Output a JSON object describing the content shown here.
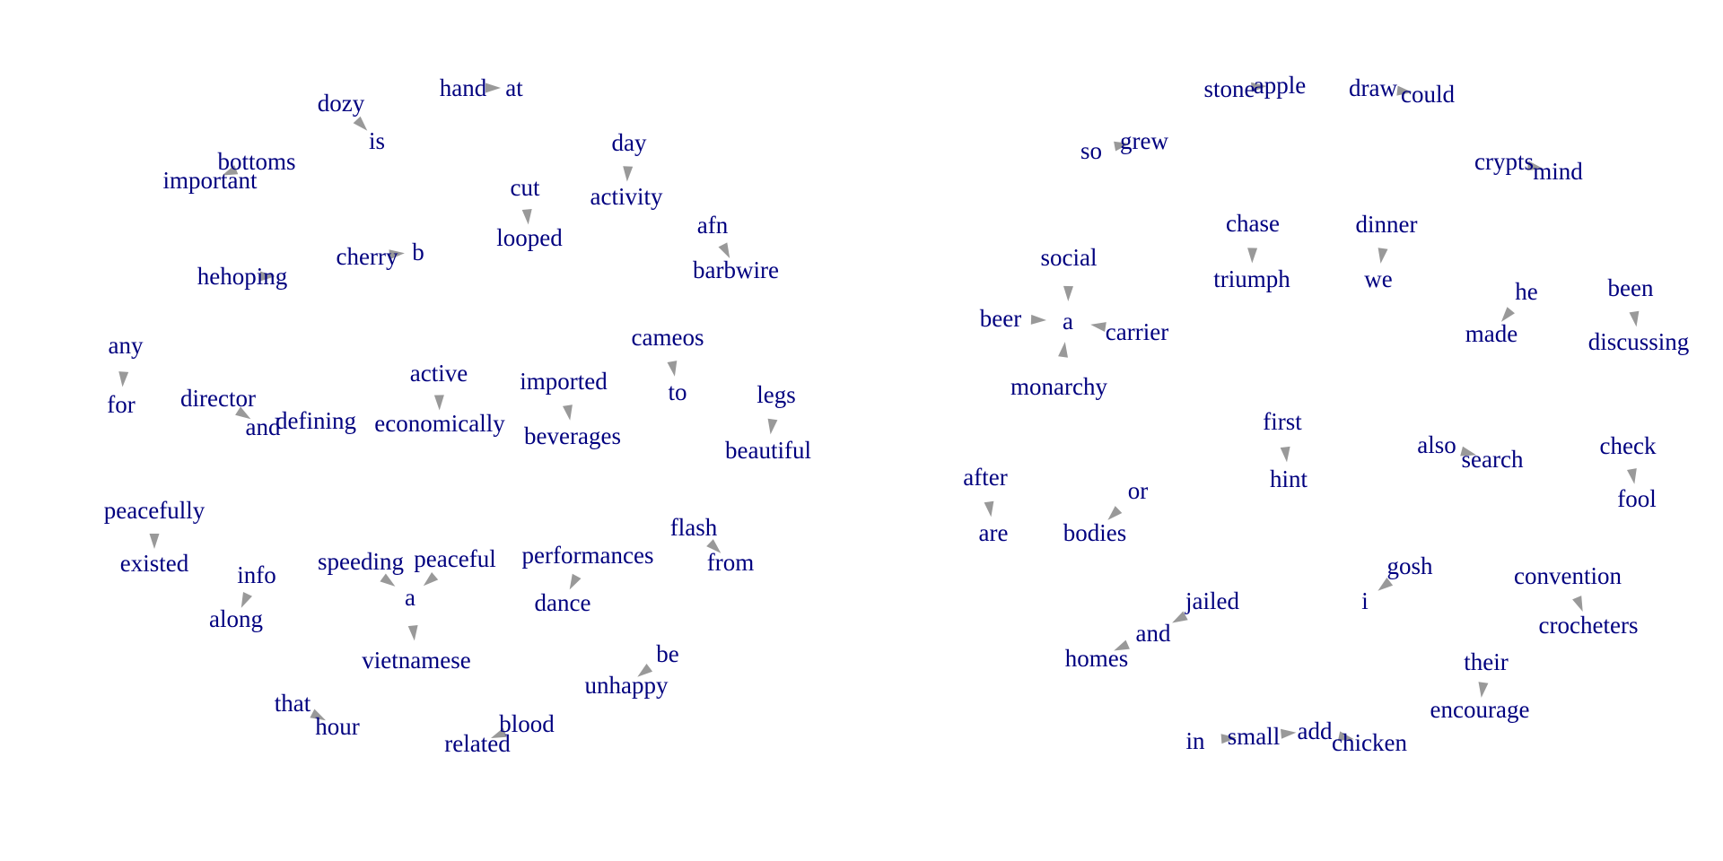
{
  "colors": {
    "label": "#00007f",
    "arrow": "#999999",
    "background": "#ffffff"
  },
  "nodes": [
    {
      "id": "hand",
      "label": "hand"
    },
    {
      "id": "at",
      "label": "at"
    },
    {
      "id": "dozy",
      "label": "dozy"
    },
    {
      "id": "is",
      "label": "is"
    },
    {
      "id": "bottoms",
      "label": "bottoms"
    },
    {
      "id": "important",
      "label": "important"
    },
    {
      "id": "day",
      "label": "day"
    },
    {
      "id": "activity",
      "label": "activity"
    },
    {
      "id": "cut",
      "label": "cut"
    },
    {
      "id": "looped",
      "label": "looped"
    },
    {
      "id": "afn",
      "label": "afn"
    },
    {
      "id": "barbwire",
      "label": "barbwire"
    },
    {
      "id": "cherry",
      "label": "cherry"
    },
    {
      "id": "b",
      "label": "b"
    },
    {
      "id": "hehoping",
      "label": "hehoping"
    },
    {
      "id": "any",
      "label": "any"
    },
    {
      "id": "for",
      "label": "for"
    },
    {
      "id": "director",
      "label": "director"
    },
    {
      "id": "and1",
      "label": "and"
    },
    {
      "id": "defining",
      "label": "defining"
    },
    {
      "id": "active",
      "label": "active"
    },
    {
      "id": "economically",
      "label": "economically"
    },
    {
      "id": "imported",
      "label": "imported"
    },
    {
      "id": "beverages",
      "label": "beverages"
    },
    {
      "id": "cameos",
      "label": "cameos"
    },
    {
      "id": "to",
      "label": "to"
    },
    {
      "id": "legs",
      "label": "legs"
    },
    {
      "id": "beautiful",
      "label": "beautiful"
    },
    {
      "id": "peacefully",
      "label": "peacefully"
    },
    {
      "id": "existed",
      "label": "existed"
    },
    {
      "id": "info",
      "label": "info"
    },
    {
      "id": "along",
      "label": "along"
    },
    {
      "id": "speeding",
      "label": "speeding"
    },
    {
      "id": "peaceful",
      "label": "peaceful"
    },
    {
      "id": "a1",
      "label": "a"
    },
    {
      "id": "vietnamese",
      "label": "vietnamese"
    },
    {
      "id": "performances",
      "label": "performances"
    },
    {
      "id": "dance",
      "label": "dance"
    },
    {
      "id": "flash",
      "label": "flash"
    },
    {
      "id": "from",
      "label": "from"
    },
    {
      "id": "be",
      "label": "be"
    },
    {
      "id": "unhappy",
      "label": "unhappy"
    },
    {
      "id": "that",
      "label": "that"
    },
    {
      "id": "hour",
      "label": "hour"
    },
    {
      "id": "blood",
      "label": "blood"
    },
    {
      "id": "related",
      "label": "related"
    },
    {
      "id": "stone",
      "label": "stone"
    },
    {
      "id": "apple",
      "label": "apple"
    },
    {
      "id": "draw",
      "label": "draw"
    },
    {
      "id": "could",
      "label": "could"
    },
    {
      "id": "so",
      "label": "so"
    },
    {
      "id": "grew",
      "label": "grew"
    },
    {
      "id": "crypts",
      "label": "crypts"
    },
    {
      "id": "mind",
      "label": "mind"
    },
    {
      "id": "chase",
      "label": "chase"
    },
    {
      "id": "triumph",
      "label": "triumph"
    },
    {
      "id": "dinner",
      "label": "dinner"
    },
    {
      "id": "we",
      "label": "we"
    },
    {
      "id": "social",
      "label": "social"
    },
    {
      "id": "beer",
      "label": "beer"
    },
    {
      "id": "a2",
      "label": "a"
    },
    {
      "id": "carrier",
      "label": "carrier"
    },
    {
      "id": "monarchy",
      "label": "monarchy"
    },
    {
      "id": "he",
      "label": "he"
    },
    {
      "id": "made",
      "label": "made"
    },
    {
      "id": "been",
      "label": "been"
    },
    {
      "id": "discussing",
      "label": "discussing"
    },
    {
      "id": "first",
      "label": "first"
    },
    {
      "id": "hint",
      "label": "hint"
    },
    {
      "id": "also",
      "label": "also"
    },
    {
      "id": "search",
      "label": "search"
    },
    {
      "id": "check",
      "label": "check"
    },
    {
      "id": "fool",
      "label": "fool"
    },
    {
      "id": "after",
      "label": "after"
    },
    {
      "id": "are",
      "label": "are"
    },
    {
      "id": "or",
      "label": "or"
    },
    {
      "id": "bodies",
      "label": "bodies"
    },
    {
      "id": "gosh",
      "label": "gosh"
    },
    {
      "id": "i",
      "label": "i"
    },
    {
      "id": "convention",
      "label": "convention"
    },
    {
      "id": "crocheters",
      "label": "crocheters"
    },
    {
      "id": "jailed",
      "label": "jailed"
    },
    {
      "id": "and2",
      "label": "and"
    },
    {
      "id": "homes",
      "label": "homes"
    },
    {
      "id": "their",
      "label": "their"
    },
    {
      "id": "encourage",
      "label": "encourage"
    },
    {
      "id": "in",
      "label": "in"
    },
    {
      "id": "small",
      "label": "small"
    },
    {
      "id": "add",
      "label": "add"
    },
    {
      "id": "chicken",
      "label": "chicken"
    }
  ],
  "edges": [
    [
      "hand",
      "at"
    ],
    [
      "dozy",
      "is"
    ],
    [
      "bottoms",
      "important"
    ],
    [
      "day",
      "activity"
    ],
    [
      "cut",
      "looped"
    ],
    [
      "afn",
      "barbwire"
    ],
    [
      "cherry",
      "b"
    ],
    [
      "hehoping",
      "hehoping"
    ],
    [
      "any",
      "for"
    ],
    [
      "director",
      "and1"
    ],
    [
      "active",
      "economically"
    ],
    [
      "imported",
      "beverages"
    ],
    [
      "cameos",
      "to"
    ],
    [
      "legs",
      "beautiful"
    ],
    [
      "peacefully",
      "existed"
    ],
    [
      "info",
      "along"
    ],
    [
      "speeding",
      "a1"
    ],
    [
      "peaceful",
      "a1"
    ],
    [
      "a1",
      "vietnamese"
    ],
    [
      "performances",
      "dance"
    ],
    [
      "flash",
      "from"
    ],
    [
      "be",
      "unhappy"
    ],
    [
      "that",
      "hour"
    ],
    [
      "blood",
      "related"
    ],
    [
      "stone",
      "apple"
    ],
    [
      "draw",
      "could"
    ],
    [
      "so",
      "grew"
    ],
    [
      "crypts",
      "mind"
    ],
    [
      "chase",
      "triumph"
    ],
    [
      "dinner",
      "we"
    ],
    [
      "social",
      "a2"
    ],
    [
      "beer",
      "a2"
    ],
    [
      "carrier",
      "a2"
    ],
    [
      "monarchy",
      "a2"
    ],
    [
      "he",
      "made"
    ],
    [
      "been",
      "discussing"
    ],
    [
      "first",
      "hint"
    ],
    [
      "also",
      "search"
    ],
    [
      "check",
      "fool"
    ],
    [
      "after",
      "are"
    ],
    [
      "or",
      "bodies"
    ],
    [
      "gosh",
      "i"
    ],
    [
      "convention",
      "crocheters"
    ],
    [
      "jailed",
      "and2"
    ],
    [
      "and2",
      "homes"
    ],
    [
      "their",
      "encourage"
    ],
    [
      "in",
      "small"
    ],
    [
      "small",
      "add"
    ],
    [
      "add",
      "chicken"
    ]
  ]
}
